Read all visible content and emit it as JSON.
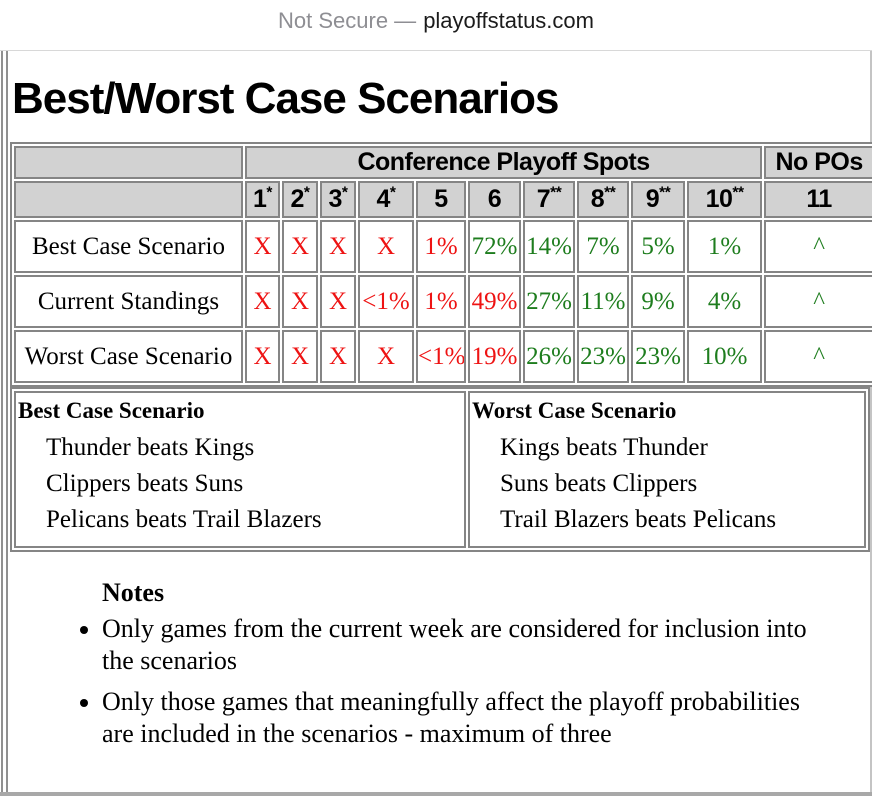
{
  "browser": {
    "security_label": "Not Secure —",
    "domain": "playoffstatus.com"
  },
  "page": {
    "title": "Best/Worst Case Scenarios"
  },
  "colors": {
    "red": "#ee1313",
    "green": "#1e7d1e",
    "header_bg": "#d2d2d2",
    "border": "#858585"
  },
  "table": {
    "corner_label": "",
    "group_header": "Conference Playoff Spots",
    "no_playoffs_header": "No POs",
    "columns": [
      {
        "label": "1",
        "sup": "*"
      },
      {
        "label": "2",
        "sup": "*"
      },
      {
        "label": "3",
        "sup": "*"
      },
      {
        "label": "4",
        "sup": "*"
      },
      {
        "label": "5",
        "sup": ""
      },
      {
        "label": "6",
        "sup": ""
      },
      {
        "label": "7",
        "sup": "**"
      },
      {
        "label": "8",
        "sup": "**"
      },
      {
        "label": "9",
        "sup": "**"
      },
      {
        "label": "10",
        "sup": "**"
      },
      {
        "label": "11",
        "sup": ""
      }
    ],
    "rows": [
      {
        "label": "Best Case Scenario",
        "cells": [
          {
            "text": "X",
            "color": "red"
          },
          {
            "text": "X",
            "color": "red"
          },
          {
            "text": "X",
            "color": "red"
          },
          {
            "text": "X",
            "color": "red"
          },
          {
            "text": "1%",
            "color": "red"
          },
          {
            "text": "72%",
            "color": "green"
          },
          {
            "text": "14%",
            "color": "green"
          },
          {
            "text": "7%",
            "color": "green"
          },
          {
            "text": "5%",
            "color": "green"
          },
          {
            "text": "1%",
            "color": "green"
          },
          {
            "text": "^",
            "color": "green"
          }
        ]
      },
      {
        "label": "Current Standings",
        "cells": [
          {
            "text": "X",
            "color": "red"
          },
          {
            "text": "X",
            "color": "red"
          },
          {
            "text": "X",
            "color": "red"
          },
          {
            "text": "<1%",
            "color": "red"
          },
          {
            "text": "1%",
            "color": "red"
          },
          {
            "text": "49%",
            "color": "red"
          },
          {
            "text": "27%",
            "color": "green"
          },
          {
            "text": "11%",
            "color": "green"
          },
          {
            "text": "9%",
            "color": "green"
          },
          {
            "text": "4%",
            "color": "green"
          },
          {
            "text": "^",
            "color": "green"
          }
        ]
      },
      {
        "label": "Worst Case Scenario",
        "cells": [
          {
            "text": "X",
            "color": "red"
          },
          {
            "text": "X",
            "color": "red"
          },
          {
            "text": "X",
            "color": "red"
          },
          {
            "text": "X",
            "color": "red"
          },
          {
            "text": "<1%",
            "color": "red"
          },
          {
            "text": "19%",
            "color": "red"
          },
          {
            "text": "26%",
            "color": "green"
          },
          {
            "text": "23%",
            "color": "green"
          },
          {
            "text": "23%",
            "color": "green"
          },
          {
            "text": "10%",
            "color": "green"
          },
          {
            "text": "^",
            "color": "green"
          }
        ]
      }
    ]
  },
  "scenarios": {
    "best": {
      "title": "Best Case Scenario",
      "items": [
        "Thunder beats Kings",
        "Clippers beats Suns",
        "Pelicans beats Trail Blazers"
      ]
    },
    "worst": {
      "title": "Worst Case Scenario",
      "items": [
        "Kings beats Thunder",
        "Suns beats Clippers",
        "Trail Blazers beats Pelicans"
      ]
    }
  },
  "notes": {
    "title": "Notes",
    "items": [
      "Only games from the current week are considered for inclusion into the scenarios",
      "Only those games that meaningfully affect the playoff probabilities are included in the scenarios - maximum of three"
    ]
  }
}
